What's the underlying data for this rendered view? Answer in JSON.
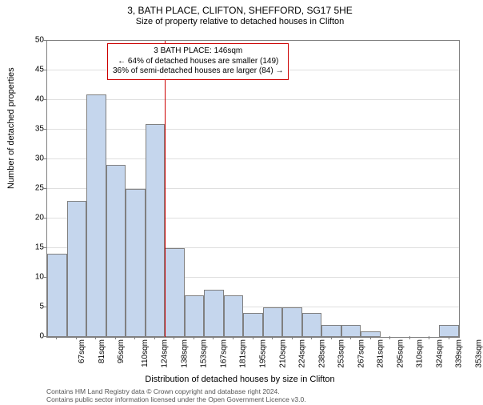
{
  "title": "3, BATH PLACE, CLIFTON, SHEFFORD, SG17 5HE",
  "subtitle": "Size of property relative to detached houses in Clifton",
  "y_axis_label": "Number of detached properties",
  "x_axis_label": "Distribution of detached houses by size in Clifton",
  "chart": {
    "type": "histogram",
    "ylim": [
      0,
      50
    ],
    "ytick_step": 5,
    "categories": [
      "67sqm",
      "81sqm",
      "95sqm",
      "110sqm",
      "124sqm",
      "138sqm",
      "153sqm",
      "167sqm",
      "181sqm",
      "195sqm",
      "210sqm",
      "224sqm",
      "238sqm",
      "253sqm",
      "267sqm",
      "281sqm",
      "295sqm",
      "310sqm",
      "324sqm",
      "339sqm",
      "353sqm"
    ],
    "values": [
      14,
      23,
      41,
      29,
      25,
      36,
      15,
      7,
      8,
      7,
      4,
      5,
      5,
      4,
      2,
      2,
      1,
      0,
      0,
      0,
      2
    ],
    "bar_color": "#c5d6ed",
    "bar_border": "#808080",
    "background_color": "#ffffff",
    "grid_color": "#808080",
    "marker_value": 146,
    "marker_color": "#cc0000",
    "x_min": 60,
    "x_step": 14.3
  },
  "annotation": {
    "line1": "3 BATH PLACE: 146sqm",
    "line2": "← 64% of detached houses are smaller (149)",
    "line3": "36% of semi-detached houses are larger (84) →",
    "border_color": "#cc0000"
  },
  "footer": {
    "line1": "Contains HM Land Registry data © Crown copyright and database right 2024.",
    "line2": "Contains public sector information licensed under the Open Government Licence v3.0."
  },
  "fonts": {
    "title_size": 12,
    "subtitle_size": 11,
    "axis_label_size": 11,
    "tick_size": 10,
    "annotation_size": 10,
    "footer_size": 8.5
  }
}
